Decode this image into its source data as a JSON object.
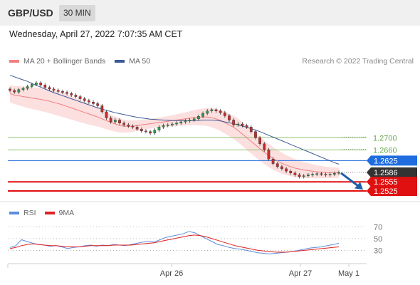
{
  "header": {
    "pair": "GBP/USD",
    "timeframe": "30 MIN",
    "datetime": "Wednesday, April 27, 2022 7:07:35 AM CET"
  },
  "legend": {
    "ma20_label": "MA 20 + Bollinger Bands",
    "ma20_color": "#f08080",
    "ma50_label": "MA 50",
    "ma50_color": "#3d5a96",
    "credit": "Research © 2022 Trading Central"
  },
  "rsi_legend": {
    "rsi_label": "RSI",
    "rsi_color": "#5b8ddb",
    "ma_label": "9MA",
    "ma_color": "#e02020"
  },
  "chart_data": {
    "type": "candlestick",
    "price_levels": [
      {
        "value": 1.27,
        "label": "1.2700",
        "style": "line",
        "color": "#8fc36b"
      },
      {
        "value": 1.266,
        "label": "1.2660",
        "style": "line",
        "color": "#8fc36b"
      },
      {
        "value": 1.2625,
        "label": "1.2625",
        "style": "badge",
        "color": "#1e6ce0"
      },
      {
        "value": 1.2586,
        "label": "1.2586",
        "style": "badge",
        "color": "#333333"
      },
      {
        "value": 1.2555,
        "label": "1.2555",
        "style": "badge",
        "color": "#e01010"
      },
      {
        "value": 1.2525,
        "label": "1.2525",
        "style": "badge",
        "color": "#e01010"
      }
    ],
    "ylim": [
      1.249,
      1.293
    ],
    "x_labels": [
      "Apr 26",
      "Apr 27",
      "May 1"
    ],
    "close": [
      1.2855,
      1.285,
      1.2858,
      1.2862,
      1.2868,
      1.2875,
      1.288,
      1.2873,
      1.2865,
      1.286,
      1.2856,
      1.2852,
      1.2849,
      1.2845,
      1.284,
      1.2835,
      1.2828,
      1.2822,
      1.2817,
      1.2812,
      1.2805,
      1.2785,
      1.2765,
      1.2752,
      1.2758,
      1.2748,
      1.2742,
      1.2738,
      1.2735,
      1.2728,
      1.2722,
      1.272,
      1.2715,
      1.2725,
      1.2735,
      1.274,
      1.2742,
      1.2745,
      1.2748,
      1.2752,
      1.2755,
      1.2758,
      1.2762,
      1.277,
      1.278,
      1.2788,
      1.2792,
      1.2788,
      1.2782,
      1.2772,
      1.2758,
      1.2742,
      1.2745,
      1.274,
      1.2735,
      1.272,
      1.27,
      1.268,
      1.266,
      1.263,
      1.2615,
      1.2605,
      1.2598,
      1.259,
      1.2584,
      1.2578,
      1.2572,
      1.2575,
      1.2578,
      1.258,
      1.2582,
      1.258,
      1.2578,
      1.258,
      1.2583,
      1.2586
    ],
    "ma20": [
      1.2845,
      1.284,
      1.2838,
      1.2835,
      1.2833,
      1.283,
      1.2828,
      1.2826,
      1.2823,
      1.282,
      1.2816,
      1.2812,
      1.2808,
      1.2803,
      1.2798,
      1.2793,
      1.2788,
      1.2783,
      1.2778,
      1.2773,
      1.2768,
      1.2762,
      1.2756,
      1.275,
      1.2745,
      1.274,
      1.2738,
      1.2737,
      1.2738,
      1.274,
      1.2742,
      1.2744,
      1.2746,
      1.2748,
      1.275,
      1.2752,
      1.2754,
      1.2756,
      1.2758,
      1.276,
      1.2762,
      1.2764,
      1.2766,
      1.2767,
      1.2768,
      1.2768,
      1.2766,
      1.2762,
      1.2757,
      1.275,
      1.2742,
      1.2734,
      1.2724,
      1.2712,
      1.27,
      1.2688,
      1.2676,
      1.2664,
      1.2652,
      1.2642,
      1.2632,
      1.2624,
      1.2616,
      1.261,
      1.2605,
      1.26,
      1.2597,
      1.2594,
      1.2592,
      1.259,
      1.2588,
      1.2587,
      1.2586,
      1.2585,
      1.2585,
      1.2585
    ],
    "ma50": [
      1.2905,
      1.29,
      1.2895,
      1.289,
      1.2885,
      1.2878,
      1.2872,
      1.2866,
      1.286,
      1.2854,
      1.2848,
      1.2843,
      1.2838,
      1.2833,
      1.2828,
      1.2823,
      1.2818,
      1.2813,
      1.2808,
      1.2803,
      1.2798,
      1.2794,
      1.279,
      1.2786,
      1.2782,
      1.2779,
      1.2776,
      1.2773,
      1.277,
      1.2767,
      1.2765,
      1.2763,
      1.2761,
      1.276,
      1.2759,
      1.2758,
      1.2757,
      1.2756,
      1.2756,
      1.2756,
      1.2756,
      1.2756,
      1.2756,
      1.2757,
      1.2758,
      1.2758,
      1.2758,
      1.2757,
      1.2755,
      1.2752,
      1.2749,
      1.2746,
      1.2742,
      1.2738,
      1.2734,
      1.273,
      1.2725,
      1.272,
      1.2714,
      1.2708,
      1.2702,
      1.2696,
      1.269,
      1.2684,
      1.2678,
      1.2672,
      1.2666,
      1.266,
      1.2654,
      1.2648,
      1.2642,
      1.2636,
      1.263,
      1.2624,
      1.2618,
      1.2613
    ],
    "rsi": {
      "ticks": [
        70,
        50,
        30
      ],
      "ylim": [
        10,
        80
      ],
      "rsi_values": [
        35,
        38,
        48,
        45,
        42,
        40,
        39,
        37,
        38,
        36,
        33,
        35,
        36,
        38,
        39,
        37,
        39,
        38,
        40,
        39,
        38,
        40,
        42,
        44,
        45,
        44,
        48,
        52,
        54,
        56,
        58,
        62,
        60,
        55,
        50,
        45,
        40,
        38,
        35,
        33,
        32,
        30,
        28,
        26,
        25,
        24,
        25,
        26,
        27,
        28,
        30,
        32,
        34,
        35,
        36,
        38,
        40,
        42
      ],
      "ma_values": [
        33,
        35,
        38,
        40,
        41,
        40,
        39,
        38,
        38,
        37,
        36,
        36,
        36,
        37,
        38,
        38,
        38,
        38,
        39,
        39,
        39,
        39,
        40,
        41,
        42,
        43,
        45,
        47,
        49,
        51,
        53,
        55,
        56,
        55,
        53,
        50,
        47,
        44,
        41,
        38,
        36,
        34,
        32,
        30,
        29,
        28,
        27,
        27,
        27,
        28,
        29,
        30,
        31,
        32,
        33,
        34,
        35,
        36
      ]
    }
  }
}
